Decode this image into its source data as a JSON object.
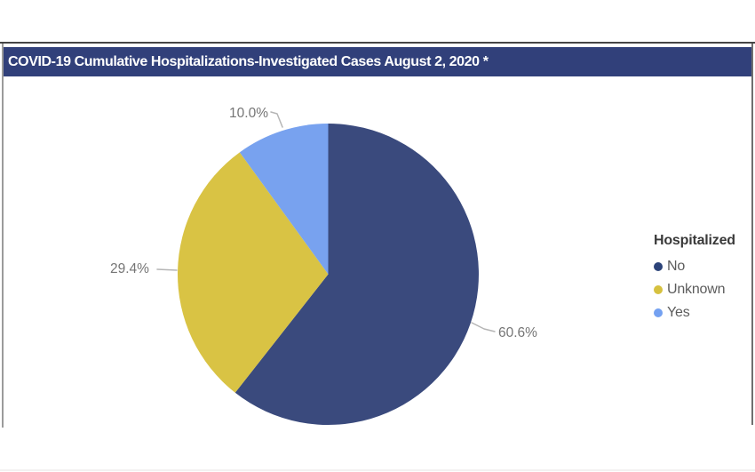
{
  "title_bar": {
    "text": "COVID-19 Cumulative Hospitalizations-Investigated Cases August 2, 2020 *"
  },
  "legend": {
    "title": "Hospitalized",
    "items": [
      {
        "label": "No",
        "color": "#2c4379"
      },
      {
        "label": "Unknown",
        "color": "#d6c13f"
      },
      {
        "label": "Yes",
        "color": "#74a1f1"
      }
    ]
  },
  "chart_data": {
    "type": "pie",
    "title": "COVID-19 Cumulative Hospitalizations-Investigated Cases August 2, 2020 *",
    "legend_title": "Hospitalized",
    "legend_position": "right",
    "categories": [
      "No",
      "Unknown",
      "Yes"
    ],
    "values": [
      60.6,
      29.4,
      10.0
    ],
    "labels": [
      "60.6%",
      "29.4%",
      "10.0%"
    ],
    "colors": [
      "#3a4a7d",
      "#d9c344",
      "#78a2ef"
    ],
    "start_angle_deg": 0,
    "direction": "clockwise"
  }
}
